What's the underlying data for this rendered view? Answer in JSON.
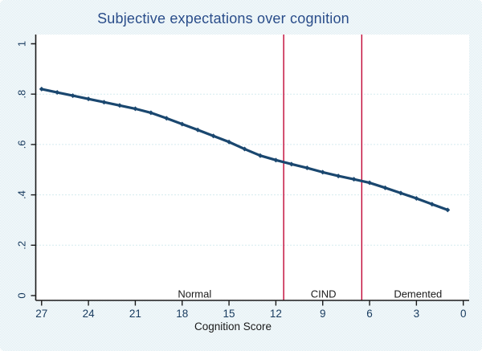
{
  "figure": {
    "background_color": "#eaf2f5",
    "plot_background_color": "#ffffff"
  },
  "chart_data": {
    "type": "line",
    "title": "Subjective expectations over cognition",
    "xlabel": "Cognition Score",
    "ylabel": "",
    "legend": "none",
    "grid": "horizontal-dotted",
    "x_axis": {
      "reversed": true,
      "lim": [
        27.4,
        -0.4
      ],
      "ticks": [
        27,
        24,
        21,
        18,
        15,
        12,
        9,
        6,
        3,
        0
      ]
    },
    "y_axis": {
      "lim": [
        -0.02,
        1.037
      ],
      "ticks": [
        0,
        0.2,
        0.4,
        0.6,
        0.8,
        1
      ],
      "tick_labels": [
        "0",
        ".2",
        ".4",
        ".6",
        ".8",
        "1"
      ],
      "grid_at": [
        0.2,
        0.4,
        0.6,
        0.8
      ]
    },
    "series": [
      {
        "name": "subjective-expectations",
        "marker": "diamond",
        "color": "#1a476f",
        "x": [
          27,
          26,
          25,
          24,
          23,
          22,
          21,
          20,
          19,
          18,
          17,
          16,
          15,
          14,
          13,
          12,
          11,
          10,
          9,
          8,
          7,
          6,
          5,
          4,
          3,
          2,
          1
        ],
        "y": [
          0.82,
          0.807,
          0.794,
          0.781,
          0.768,
          0.755,
          0.742,
          0.726,
          0.704,
          0.681,
          0.658,
          0.634,
          0.61,
          0.582,
          0.556,
          0.538,
          0.522,
          0.507,
          0.49,
          0.475,
          0.462,
          0.448,
          0.428,
          0.407,
          0.386,
          0.363,
          0.34
        ]
      }
    ],
    "vlines": [
      {
        "name": "normal-cind-threshold",
        "x": 11.5
      },
      {
        "name": "cind-demented-threshold",
        "x": 6.5
      }
    ],
    "region_labels": [
      {
        "label": "Normal",
        "x": 17.2
      },
      {
        "label": "CIND",
        "x": 8.95
      },
      {
        "label": "Demented",
        "x": 2.9
      }
    ],
    "colors": {
      "line": "#1a476f",
      "vline": "#c10534",
      "grid": "#a9d6de",
      "axis": "#1a1a1a",
      "tick_label": "#173a5e",
      "region_label": "#1a1a1a",
      "title": "#2a4d8a"
    }
  }
}
